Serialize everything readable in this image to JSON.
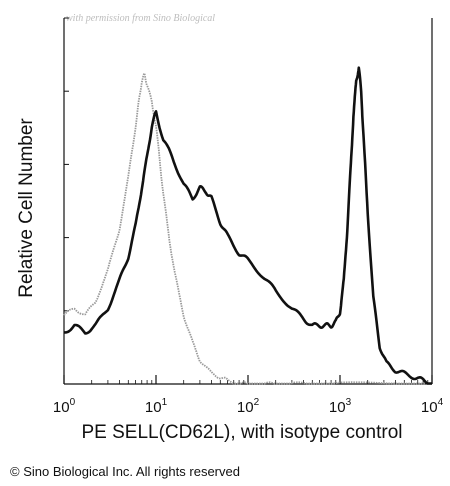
{
  "watermark": "with permission from Sino Biological",
  "copyright": "© Sino Biological Inc. All rights reserved",
  "chart_data": {
    "type": "line",
    "xlabel": "PE SELL(CD62L), with isotype control",
    "ylabel": "Relative Cell Number",
    "x_scale": "log",
    "xlim": [
      1,
      10000
    ],
    "x_ticks": [
      {
        "base": "10",
        "exp": "0"
      },
      {
        "base": "10",
        "exp": "1"
      },
      {
        "base": "10",
        "exp": "2"
      },
      {
        "base": "10",
        "exp": "3"
      },
      {
        "base": "10",
        "exp": "4"
      }
    ],
    "ylim": [
      0,
      100
    ],
    "grid": false,
    "series": [
      {
        "color": "#111111",
        "x": [
          1,
          1.3,
          1.7,
          2.2,
          3,
          4,
          5,
          6,
          7,
          8,
          9,
          10,
          12,
          15,
          20,
          25,
          30,
          35,
          40,
          50,
          60,
          80,
          100,
          150,
          200,
          300,
          400,
          500,
          600,
          700,
          800,
          900,
          1000,
          1100,
          1200,
          1300,
          1400,
          1500,
          1600,
          1700,
          1800,
          2000,
          2300,
          2700,
          3200,
          4000,
          5000,
          6500,
          8000,
          10000
        ],
        "y": [
          15,
          17,
          15,
          17,
          22,
          30,
          37,
          46,
          57,
          66,
          75,
          79,
          71,
          66,
          58,
          54,
          57,
          56,
          54,
          47,
          43,
          38,
          36,
          31,
          27,
          22,
          19,
          17,
          17,
          17,
          17,
          18,
          21,
          30,
          45,
          62,
          78,
          88,
          92,
          85,
          72,
          50,
          25,
          11,
          6,
          4,
          3,
          2,
          1,
          0
        ]
      },
      {
        "color": "#9a9a9a",
        "x": [
          1,
          1.3,
          1.7,
          2.2,
          3,
          4,
          5,
          6,
          6.5,
          7,
          7.5,
          8,
          9,
          10,
          11,
          12,
          14,
          16,
          20,
          25,
          30,
          40,
          50,
          60,
          80,
          100,
          150,
          200,
          300,
          500,
          1000,
          10000
        ],
        "y": [
          20,
          22,
          20,
          24,
          33,
          45,
          60,
          75,
          82,
          88,
          90,
          87,
          82,
          75,
          65,
          55,
          42,
          32,
          20,
          12,
          7,
          3,
          2,
          1,
          0,
          0,
          0,
          0,
          0,
          0,
          0,
          0
        ]
      }
    ]
  }
}
